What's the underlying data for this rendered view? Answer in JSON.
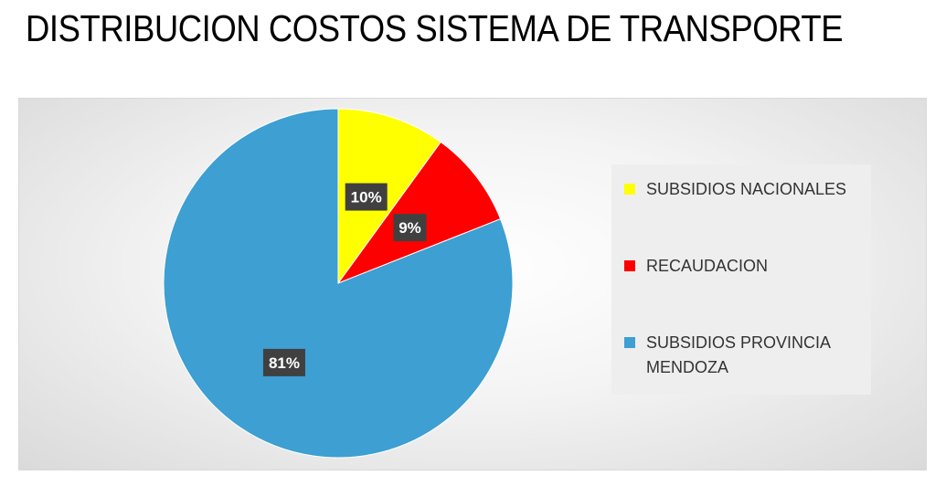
{
  "title": "DISTRIBUCION COSTOS SISTEMA DE TRANSPORTE",
  "chart_data": {
    "type": "pie",
    "start_angle_deg": 0,
    "direction": "clockwise",
    "slices": [
      {
        "label": "SUBSIDIOS NACIONALES",
        "value": 10,
        "data_label": "10%",
        "color": "#ffff00"
      },
      {
        "label": "RECAUDACION",
        "value": 9,
        "data_label": "9%",
        "color": "#ff0000"
      },
      {
        "label": "SUBSIDIOS PROVINCIA MENDOZA",
        "value": 81,
        "data_label": "81%",
        "color": "#3d9fd2"
      }
    ],
    "legend_position": "right",
    "label_box_color": "#404040",
    "label_text_color": "#ffffff"
  }
}
